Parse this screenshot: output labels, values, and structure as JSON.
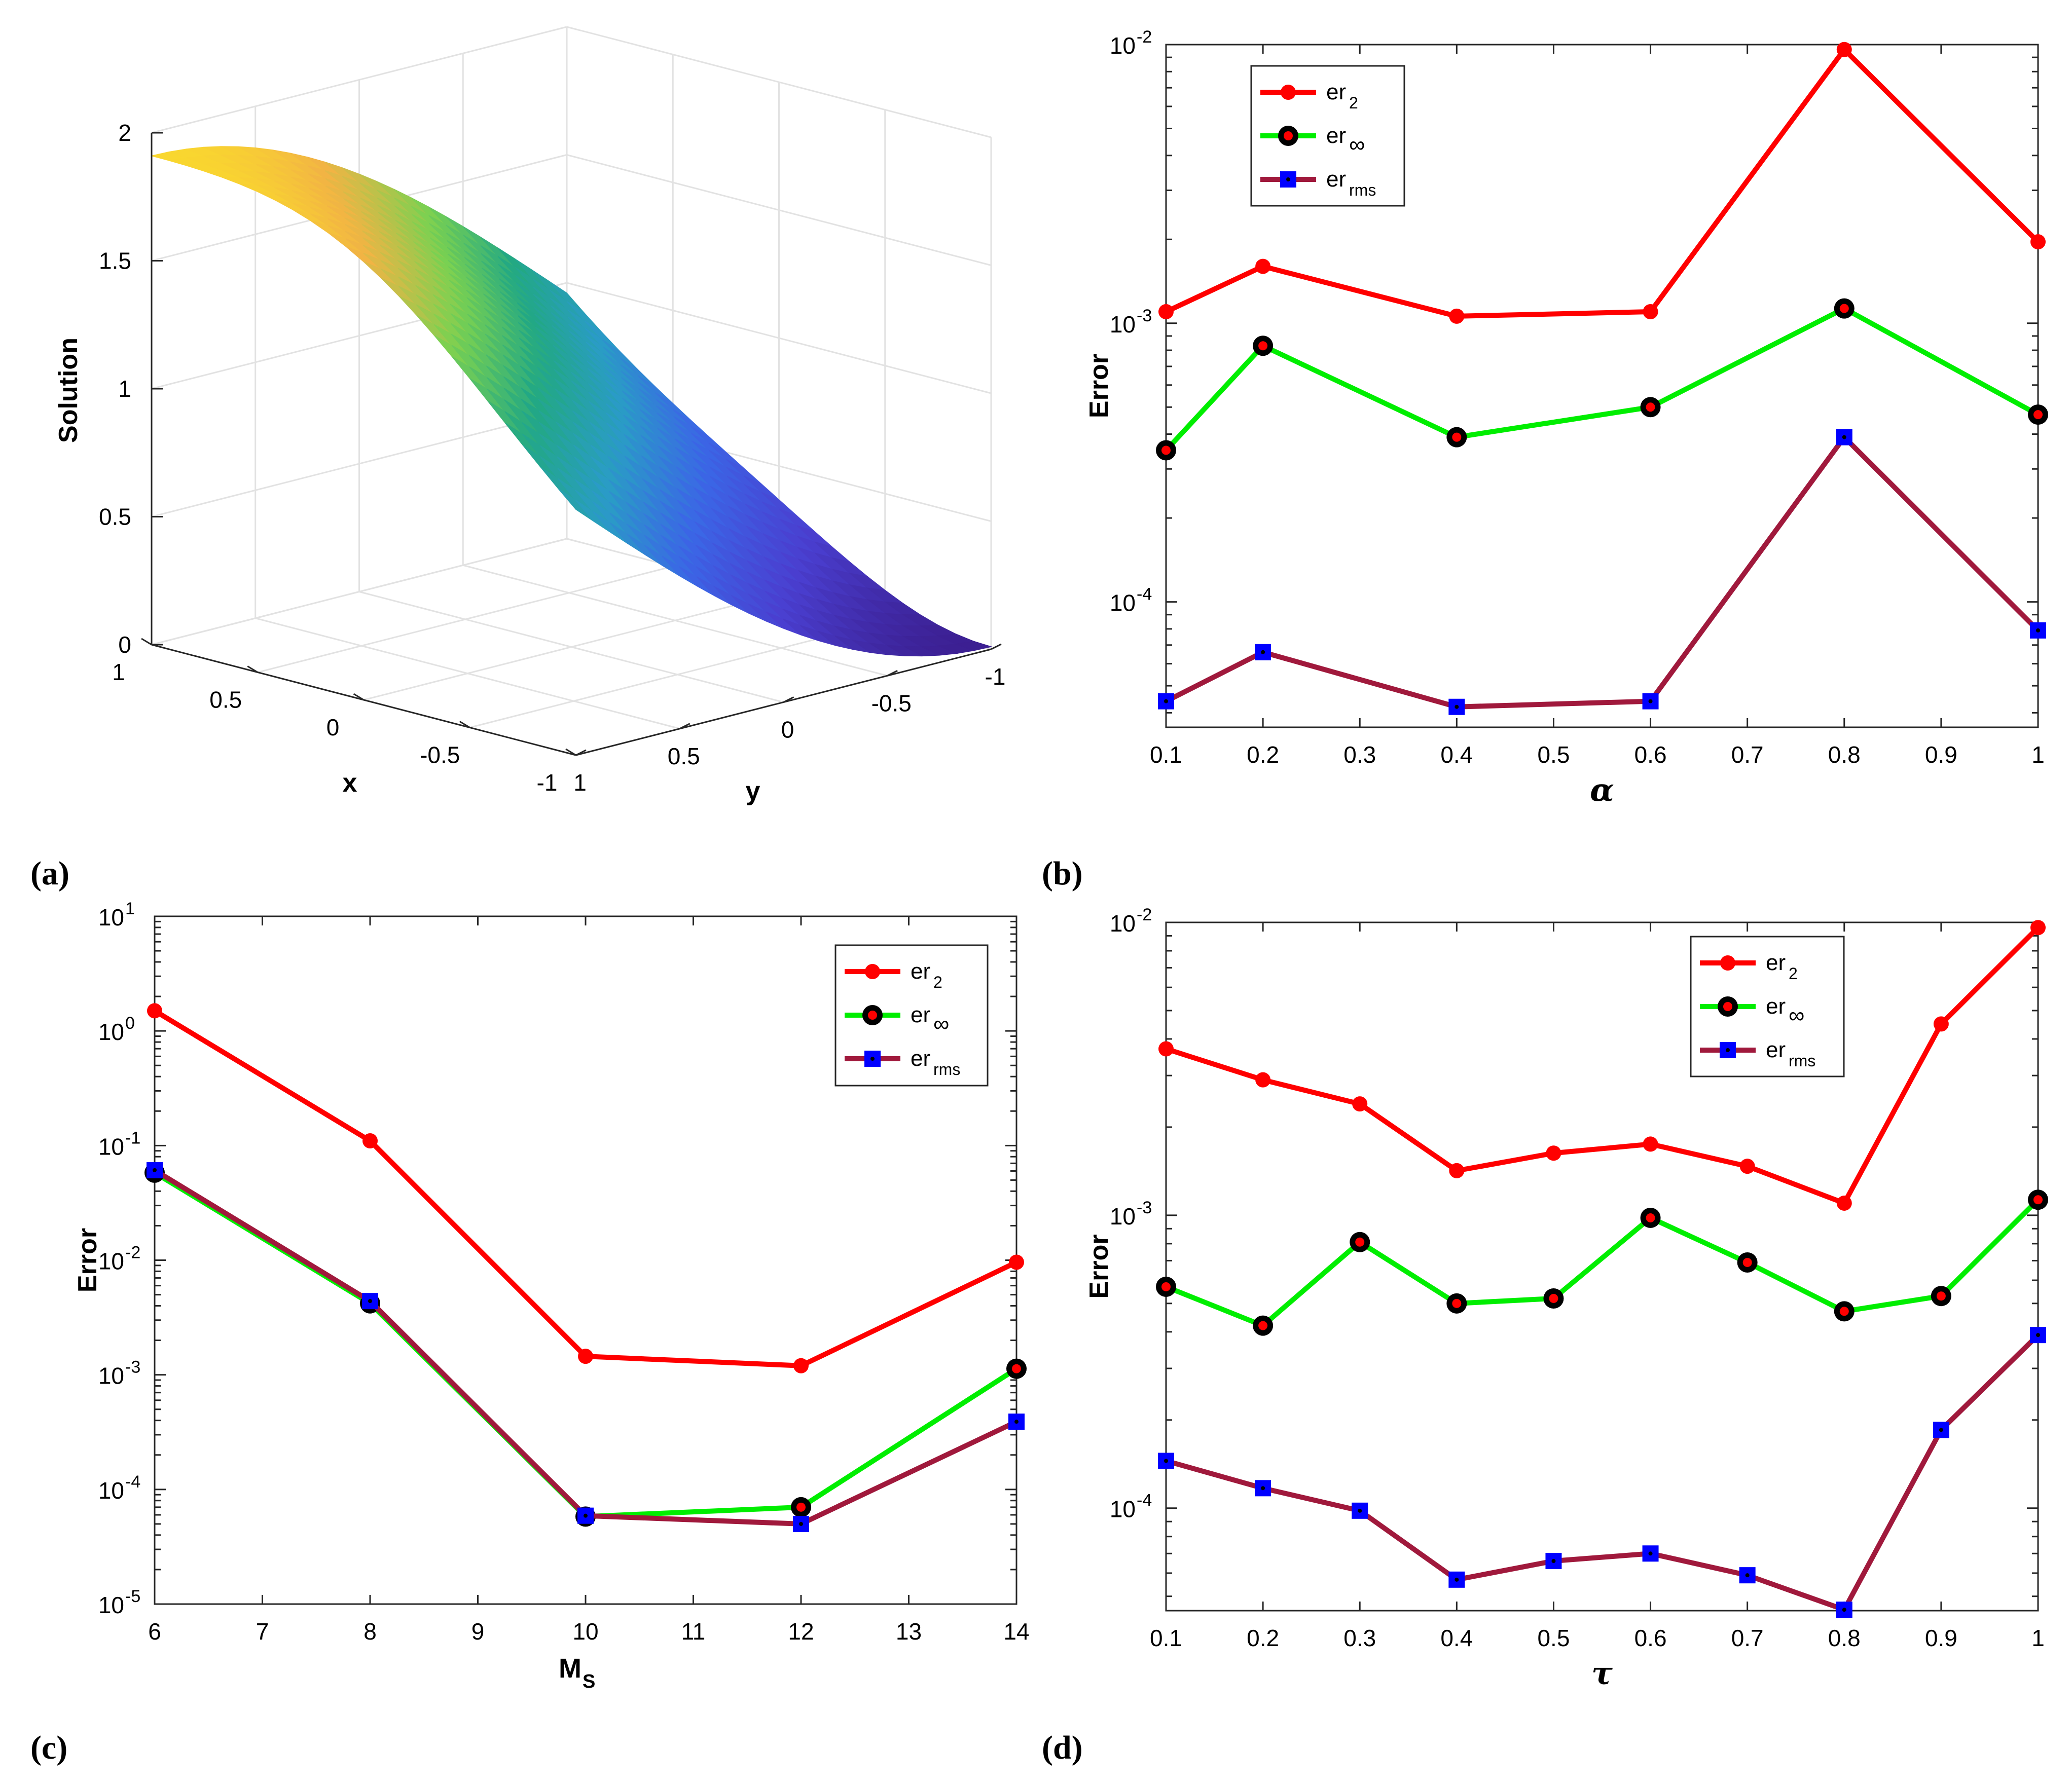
{
  "panel_labels": [
    "(a)",
    "(b)",
    "(c)",
    "(d)"
  ],
  "colors": {
    "er2": "#ff0000",
    "erinf": "#00ee00",
    "errms": "#a0193c",
    "marker_blue": "#0000ff",
    "marker_black": "#000000"
  },
  "chart_data": [
    {
      "panel": "(a)",
      "type": "surface3d",
      "zlabel": "Solution",
      "xlabel": "x",
      "ylabel": "y",
      "z_ticks": [
        "2",
        "1.5",
        "1",
        "0.5",
        "0"
      ],
      "x_ticks": [
        "1",
        "0.5",
        "0",
        "-0.5",
        "-1"
      ],
      "y_ticks": [
        "1",
        "0.5",
        "0",
        "-0.5",
        "-1"
      ],
      "zlim": [
        0,
        2
      ],
      "xlim": [
        -1,
        1
      ],
      "ylim": [
        -1,
        1
      ],
      "colormap": [
        "#fde725",
        "#f2b444",
        "#7ad151",
        "#22a884",
        "#2a9cc6",
        "#3b66e6",
        "#4a3fd0",
        "#3b1e8f"
      ]
    },
    {
      "panel": "(b)",
      "type": "line",
      "yscale": "log",
      "xlabel": "α",
      "ylabel": "Error",
      "xlim": [
        0.1,
        1
      ],
      "ylim_exp": [
        -4.45,
        -2
      ],
      "x_ticks": [
        "0.1",
        "0.2",
        "0.3",
        "0.4",
        "0.5",
        "0.6",
        "0.7",
        "0.8",
        "0.9",
        "1"
      ],
      "y_ticks": [
        {
          "base": "10",
          "exp": "-2",
          "e": -2
        },
        {
          "base": "10",
          "exp": "-3",
          "e": -3
        },
        {
          "base": "10",
          "exp": "-4",
          "e": -4
        }
      ],
      "legend": {
        "position": "top-left",
        "entries": [
          {
            "main": "er",
            "sub": "2"
          },
          {
            "main": "er",
            "sub": "∞"
          },
          {
            "main": "er",
            "sub": "rms"
          }
        ]
      },
      "x": [
        0.1,
        0.2,
        0.4,
        0.6,
        0.8,
        1.0
      ],
      "series": [
        {
          "name": "er2",
          "values": [
            0.0011,
            0.0016,
            0.00106,
            0.0011,
            0.0096,
            0.00196
          ]
        },
        {
          "name": "erinf",
          "values": [
            0.00035,
            0.00083,
            0.00039,
            0.0005,
            0.00113,
            0.00047
          ]
        },
        {
          "name": "errms",
          "values": [
            4.4e-05,
            6.6e-05,
            4.2e-05,
            4.4e-05,
            0.00039,
            7.9e-05
          ]
        }
      ]
    },
    {
      "panel": "(c)",
      "type": "line",
      "yscale": "log",
      "xlabel": "M",
      "xlabel_sub": "S",
      "ylabel": "Error",
      "xlim": [
        6,
        14
      ],
      "ylim_exp": [
        -5,
        1
      ],
      "x_ticks": [
        "6",
        "7",
        "8",
        "9",
        "10",
        "11",
        "12",
        "13",
        "14"
      ],
      "y_ticks": [
        {
          "base": "10",
          "exp": "1",
          "e": 1
        },
        {
          "base": "10",
          "exp": "0",
          "e": 0
        },
        {
          "base": "10",
          "exp": "-1",
          "e": -1
        },
        {
          "base": "10",
          "exp": "-2",
          "e": -2
        },
        {
          "base": "10",
          "exp": "-3",
          "e": -3
        },
        {
          "base": "10",
          "exp": "-4",
          "e": -4
        },
        {
          "base": "10",
          "exp": "-5",
          "e": -5
        }
      ],
      "legend": {
        "position": "top-right",
        "entries": [
          {
            "main": "er",
            "sub": "2"
          },
          {
            "main": "er",
            "sub": "∞"
          },
          {
            "main": "er",
            "sub": "rms"
          }
        ]
      },
      "x": [
        6,
        8,
        10,
        12,
        14
      ],
      "series": [
        {
          "name": "er2",
          "values": [
            1.5,
            0.11,
            0.00145,
            0.0012,
            0.0096
          ]
        },
        {
          "name": "erinf",
          "values": [
            0.058,
            0.0042,
            5.8e-05,
            7e-05,
            0.00113
          ]
        },
        {
          "name": "errms",
          "values": [
            0.061,
            0.0044,
            5.9e-05,
            5e-05,
            0.00039
          ]
        }
      ]
    },
    {
      "panel": "(d)",
      "type": "line",
      "yscale": "log",
      "xlabel": "τ",
      "ylabel": "Error",
      "xlim": [
        0.1,
        1
      ],
      "ylim_exp": [
        -4.35,
        -2
      ],
      "x_ticks": [
        "0.1",
        "0.2",
        "0.3",
        "0.4",
        "0.5",
        "0.6",
        "0.7",
        "0.8",
        "0.9",
        "1"
      ],
      "y_ticks": [
        {
          "base": "10",
          "exp": "-2",
          "e": -2
        },
        {
          "base": "10",
          "exp": "-3",
          "e": -3
        },
        {
          "base": "10",
          "exp": "-4",
          "e": -4
        }
      ],
      "legend": {
        "position": "top-right",
        "entries": [
          {
            "main": "er",
            "sub": "2"
          },
          {
            "main": "er",
            "sub": "∞"
          },
          {
            "main": "er",
            "sub": "rms"
          }
        ]
      },
      "x": [
        0.1,
        0.2,
        0.3,
        0.4,
        0.5,
        0.6,
        0.7,
        0.8,
        0.9,
        1.0
      ],
      "series": [
        {
          "name": "er2",
          "values": [
            0.0037,
            0.0029,
            0.0024,
            0.00142,
            0.00163,
            0.00175,
            0.00147,
            0.0011,
            0.0045,
            0.0096
          ]
        },
        {
          "name": "erinf",
          "values": [
            0.00057,
            0.00042,
            0.00081,
            0.0005,
            0.00052,
            0.00098,
            0.00069,
            0.00047,
            0.00053,
            0.00113
          ]
        },
        {
          "name": "errms",
          "values": [
            0.000145,
            0.000117,
            9.8e-05,
            5.7e-05,
            6.6e-05,
            7e-05,
            5.9e-05,
            4.5e-05,
            0.000185,
            0.00039
          ]
        }
      ]
    }
  ]
}
